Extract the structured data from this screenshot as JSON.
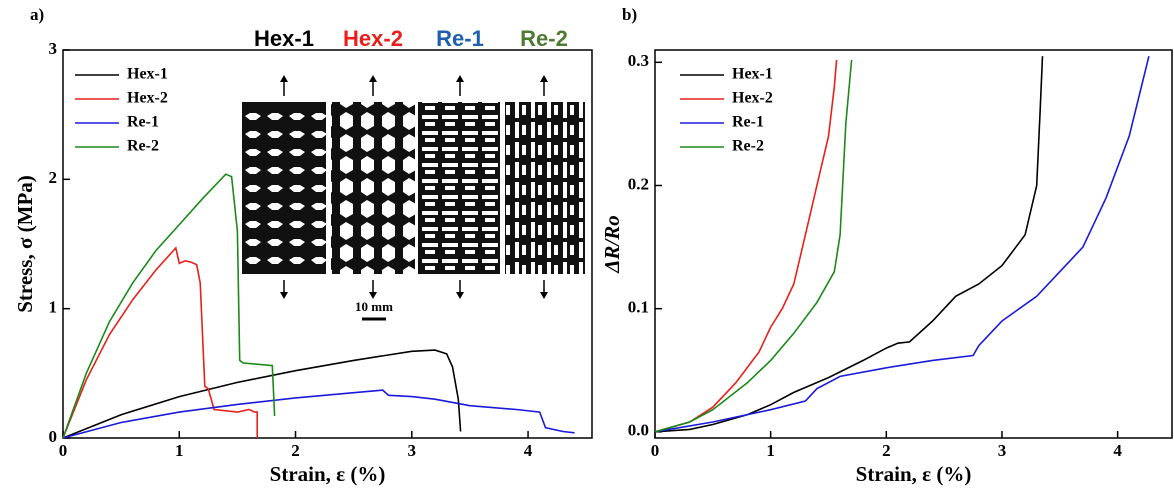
{
  "chart_data": [
    {
      "type": "line",
      "panel_label": "a)",
      "xlabel": "Strain, ε (%)",
      "ylabel": "Stress, σ (MPa)",
      "xlim": [
        0,
        4.55
      ],
      "ylim": [
        0,
        3
      ],
      "xticks": [
        0,
        1,
        2,
        3,
        4
      ],
      "yticks": [
        0,
        1,
        2,
        3
      ],
      "grid": false,
      "legend": "upper left",
      "series": [
        {
          "name": "Hex-1",
          "color": "#000000",
          "x": [
            0,
            0.5,
            1,
            1.5,
            2,
            2.5,
            3,
            3.2,
            3.3,
            3.35,
            3.4,
            3.42
          ],
          "values": [
            0,
            0.18,
            0.32,
            0.43,
            0.52,
            0.6,
            0.67,
            0.68,
            0.65,
            0.55,
            0.3,
            0.05
          ]
        },
        {
          "name": "Hex-2",
          "color": "#e8201c",
          "x": [
            0,
            0.2,
            0.4,
            0.6,
            0.8,
            0.95,
            0.97,
            1.0,
            1.05,
            1.1,
            1.15,
            1.18,
            1.2,
            1.22,
            1.25,
            1.3,
            1.5,
            1.6,
            1.65,
            1.67,
            1.67
          ],
          "values": [
            0,
            0.45,
            0.8,
            1.07,
            1.3,
            1.45,
            1.47,
            1.35,
            1.37,
            1.36,
            1.34,
            1.2,
            0.8,
            0.4,
            0.38,
            0.22,
            0.2,
            0.22,
            0.2,
            0.2,
            0
          ]
        },
        {
          "name": "Re-1",
          "color": "#1a1adb",
          "x": [
            0,
            0.5,
            1,
            1.5,
            2,
            2.5,
            2.75,
            2.8,
            3.0,
            3.2,
            3.5,
            3.9,
            4.1,
            4.15,
            4.3,
            4.4
          ],
          "values": [
            0,
            0.12,
            0.2,
            0.26,
            0.31,
            0.35,
            0.37,
            0.33,
            0.32,
            0.3,
            0.25,
            0.22,
            0.2,
            0.08,
            0.05,
            0.04
          ]
        },
        {
          "name": "Re-2",
          "color": "#1b8a1b",
          "x": [
            0,
            0.2,
            0.4,
            0.6,
            0.8,
            1.0,
            1.2,
            1.4,
            1.45,
            1.5,
            1.52,
            1.55,
            1.8,
            1.82
          ],
          "values": [
            0,
            0.5,
            0.9,
            1.2,
            1.45,
            1.65,
            1.85,
            2.04,
            2.02,
            1.6,
            0.6,
            0.58,
            0.56,
            0.17
          ]
        }
      ],
      "inset_labels": [
        {
          "text": "Hex-1",
          "color": "#000000"
        },
        {
          "text": "Hex-2",
          "color": "#e8201c"
        },
        {
          "text": "Re-1",
          "color": "#1f5fb0"
        },
        {
          "text": "Re-2",
          "color": "#4f7a32"
        }
      ],
      "scale_bar": "10 mm"
    },
    {
      "type": "line",
      "panel_label": "b)",
      "xlabel": "Strain, ε (%)",
      "ylabel": "ΔR/Ro",
      "xlim": [
        0,
        4.47
      ],
      "ylim": [
        -0.005,
        0.31
      ],
      "xticks": [
        0,
        1,
        2,
        3,
        4
      ],
      "yticks": [
        {
          "value": 0,
          "label": "0.0"
        },
        0.1,
        0.2,
        0.3
      ],
      "grid": false,
      "legend": "upper left",
      "series": [
        {
          "name": "Hex-1",
          "color": "#000000",
          "x": [
            0,
            0.3,
            0.5,
            0.8,
            1,
            1.2,
            1.5,
            1.8,
            2,
            2.1,
            2.2,
            2.4,
            2.6,
            2.8,
            3,
            3.2,
            3.3,
            3.33,
            3.35
          ],
          "values": [
            0,
            0.002,
            0.006,
            0.014,
            0.022,
            0.032,
            0.044,
            0.058,
            0.068,
            0.072,
            0.073,
            0.09,
            0.11,
            0.12,
            0.135,
            0.16,
            0.2,
            0.26,
            0.305
          ]
        },
        {
          "name": "Hex-2",
          "color": "#e8201c",
          "x": [
            0,
            0.3,
            0.5,
            0.7,
            0.9,
            1.0,
            1.1,
            1.2,
            1.3,
            1.4,
            1.5,
            1.55,
            1.57
          ],
          "values": [
            0,
            0.008,
            0.02,
            0.04,
            0.065,
            0.085,
            0.1,
            0.12,
            0.16,
            0.2,
            0.24,
            0.28,
            0.302
          ]
        },
        {
          "name": "Re-1",
          "color": "#1a1adb",
          "x": [
            0,
            0.5,
            1,
            1.3,
            1.4,
            1.6,
            2,
            2.4,
            2.75,
            2.8,
            2.9,
            3,
            3.3,
            3.5,
            3.7,
            3.9,
            4.1,
            4.27
          ],
          "values": [
            0,
            0.008,
            0.018,
            0.025,
            0.035,
            0.045,
            0.052,
            0.058,
            0.062,
            0.07,
            0.08,
            0.09,
            0.11,
            0.13,
            0.15,
            0.19,
            0.24,
            0.305
          ]
        },
        {
          "name": "Re-2",
          "color": "#1b8a1b",
          "x": [
            0,
            0.3,
            0.5,
            0.8,
            1,
            1.2,
            1.4,
            1.55,
            1.6,
            1.65,
            1.7
          ],
          "values": [
            0,
            0.008,
            0.018,
            0.04,
            0.058,
            0.08,
            0.105,
            0.13,
            0.16,
            0.25,
            0.302
          ]
        }
      ]
    }
  ]
}
